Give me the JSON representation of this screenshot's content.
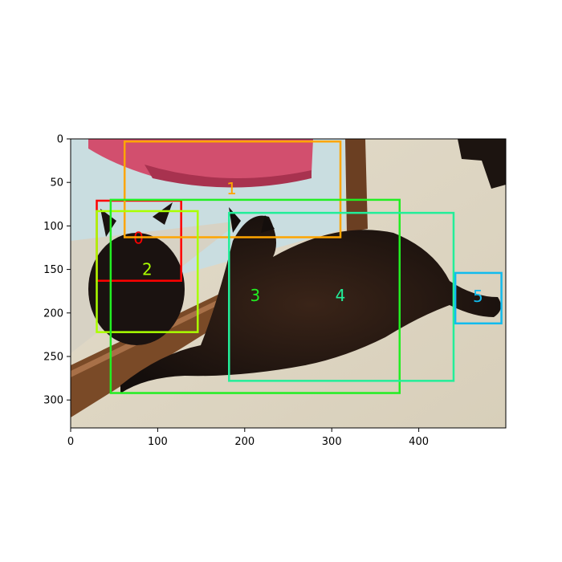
{
  "axes": {
    "x_ticks": [
      "0",
      "100",
      "200",
      "300",
      "400"
    ],
    "y_ticks": [
      "0",
      "50",
      "100",
      "150",
      "200",
      "250",
      "300"
    ]
  },
  "detections": [
    {
      "label": "0",
      "color": "#ff0000"
    },
    {
      "label": "1",
      "color": "#ffa500"
    },
    {
      "label": "2",
      "color": "#aaff00"
    },
    {
      "label": "3",
      "color": "#22ee22"
    },
    {
      "label": "4",
      "color": "#22ee99"
    },
    {
      "label": "5",
      "color": "#11bbee"
    }
  ],
  "scene": {
    "subject": "black long-haired cat lying on carpet beside its mirror reflection",
    "colors": {
      "carpet": "#ddd5c0",
      "towel": "#d44a6a",
      "wall": "#c8dde0",
      "wood": "#6b3f22",
      "cat": "#201814"
    }
  }
}
